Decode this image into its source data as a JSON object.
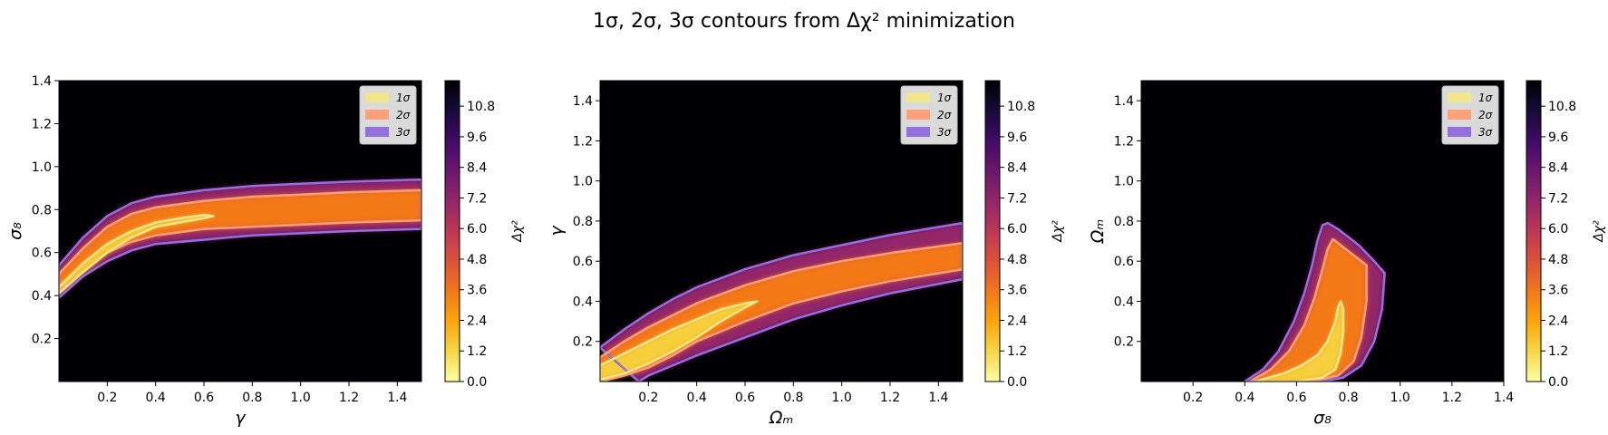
{
  "figure": {
    "title": "1σ, 2σ, 3σ contours from Δχ² minimization"
  },
  "colors": {
    "sigma1": "#f0e68c",
    "sigma2": "#ffa07a",
    "sigma3": "#9370db",
    "background": "#000004"
  },
  "chart_data": [
    {
      "type": "heatmap",
      "title": "",
      "xlabel": "γ",
      "ylabel": "σ₈",
      "xlim": [
        0.0,
        1.5
      ],
      "ylim": [
        0.0,
        1.4
      ],
      "xticks": [
        "0.2",
        "0.4",
        "0.6",
        "0.8",
        "1.0",
        "1.2",
        "1.4"
      ],
      "xtick_values": [
        0.2,
        0.4,
        0.6,
        0.8,
        1.0,
        1.2,
        1.4
      ],
      "yticks": [
        "0.2",
        "0.4",
        "0.6",
        "0.8",
        "1.0",
        "1.2",
        "1.4"
      ],
      "ytick_values": [
        0.2,
        0.4,
        0.6,
        0.8,
        1.0,
        1.2,
        1.4
      ],
      "grid": false,
      "legend": {
        "placement": "top-right",
        "entries": [
          "1σ",
          "2σ",
          "3σ"
        ]
      },
      "colorbar": {
        "label": "Δχ²",
        "colormap": "inferno_r",
        "range": [
          0.0,
          11.8
        ],
        "ticks": [
          "0.0",
          "1.2",
          "2.4",
          "3.6",
          "4.8",
          "6.0",
          "7.2",
          "8.4",
          "9.6",
          "10.8"
        ],
        "tick_values": [
          0.0,
          1.2,
          2.4,
          3.6,
          4.8,
          6.0,
          7.2,
          8.4,
          9.6,
          10.8
        ]
      },
      "contour_levels": [
        2.3,
        6.18,
        11.8
      ],
      "contours": [
        {
          "name": "1σ",
          "points": [
            [
              0.0,
              0.44
            ],
            [
              0.1,
              0.55
            ],
            [
              0.2,
              0.64
            ],
            [
              0.3,
              0.7
            ],
            [
              0.4,
              0.74
            ],
            [
              0.5,
              0.76
            ],
            [
              0.6,
              0.775
            ],
            [
              0.64,
              0.77
            ],
            [
              0.6,
              0.76
            ],
            [
              0.5,
              0.74
            ],
            [
              0.4,
              0.72
            ],
            [
              0.3,
              0.67
            ],
            [
              0.2,
              0.6
            ],
            [
              0.1,
              0.51
            ],
            [
              0.0,
              0.41
            ]
          ]
        },
        {
          "name": "2σ",
          "points": [
            [
              0.0,
              0.5
            ],
            [
              0.1,
              0.62
            ],
            [
              0.2,
              0.72
            ],
            [
              0.3,
              0.78
            ],
            [
              0.4,
              0.81
            ],
            [
              0.6,
              0.84
            ],
            [
              0.8,
              0.86
            ],
            [
              1.0,
              0.87
            ],
            [
              1.2,
              0.88
            ],
            [
              1.5,
              0.89
            ],
            [
              1.5,
              0.75
            ],
            [
              1.2,
              0.74
            ],
            [
              1.0,
              0.73
            ],
            [
              0.8,
              0.72
            ],
            [
              0.6,
              0.71
            ],
            [
              0.4,
              0.68
            ],
            [
              0.3,
              0.65
            ],
            [
              0.2,
              0.6
            ],
            [
              0.1,
              0.51
            ],
            [
              0.0,
              0.42
            ]
          ]
        },
        {
          "name": "3σ",
          "points": [
            [
              0.0,
              0.54
            ],
            [
              0.1,
              0.67
            ],
            [
              0.2,
              0.77
            ],
            [
              0.3,
              0.83
            ],
            [
              0.4,
              0.86
            ],
            [
              0.6,
              0.89
            ],
            [
              0.8,
              0.91
            ],
            [
              1.0,
              0.92
            ],
            [
              1.2,
              0.93
            ],
            [
              1.5,
              0.94
            ],
            [
              1.5,
              0.71
            ],
            [
              1.2,
              0.7
            ],
            [
              1.0,
              0.69
            ],
            [
              0.8,
              0.68
            ],
            [
              0.6,
              0.66
            ],
            [
              0.4,
              0.64
            ],
            [
              0.3,
              0.61
            ],
            [
              0.2,
              0.56
            ],
            [
              0.1,
              0.49
            ],
            [
              0.0,
              0.39
            ]
          ]
        }
      ]
    },
    {
      "type": "heatmap",
      "title": "",
      "xlabel": "Ωₘ",
      "ylabel": "γ",
      "xlim": [
        0.0,
        1.5
      ],
      "ylim": [
        0.0,
        1.5
      ],
      "xticks": [
        "0.2",
        "0.4",
        "0.6",
        "0.8",
        "1.0",
        "1.2",
        "1.4"
      ],
      "xtick_values": [
        0.2,
        0.4,
        0.6,
        0.8,
        1.0,
        1.2,
        1.4
      ],
      "yticks": [
        "0.2",
        "0.4",
        "0.6",
        "0.8",
        "1.0",
        "1.2",
        "1.4"
      ],
      "ytick_values": [
        0.2,
        0.4,
        0.6,
        0.8,
        1.0,
        1.2,
        1.4
      ],
      "grid": false,
      "legend": {
        "placement": "top-right",
        "entries": [
          "1σ",
          "2σ",
          "3σ"
        ]
      },
      "colorbar": {
        "label": "Δχ²",
        "colormap": "inferno_r",
        "range": [
          0.0,
          11.8
        ],
        "ticks": [
          "0.0",
          "1.2",
          "2.4",
          "3.6",
          "4.8",
          "6.0",
          "7.2",
          "8.4",
          "9.6",
          "10.8"
        ],
        "tick_values": [
          0.0,
          1.2,
          2.4,
          3.6,
          4.8,
          6.0,
          7.2,
          8.4,
          9.6,
          10.8
        ]
      },
      "contour_levels": [
        2.3,
        6.18,
        11.8
      ],
      "contours": [
        {
          "name": "1σ",
          "points": [
            [
              0.0,
              0.08
            ],
            [
              0.1,
              0.14
            ],
            [
              0.2,
              0.2
            ],
            [
              0.3,
              0.26
            ],
            [
              0.4,
              0.31
            ],
            [
              0.5,
              0.36
            ],
            [
              0.6,
              0.39
            ],
            [
              0.65,
              0.4
            ],
            [
              0.6,
              0.37
            ],
            [
              0.5,
              0.3
            ],
            [
              0.4,
              0.22
            ],
            [
              0.3,
              0.15
            ],
            [
              0.2,
              0.09
            ],
            [
              0.1,
              0.04
            ],
            [
              0.0,
              0.01
            ]
          ]
        },
        {
          "name": "2σ",
          "points": [
            [
              0.0,
              0.12
            ],
            [
              0.1,
              0.2
            ],
            [
              0.2,
              0.27
            ],
            [
              0.3,
              0.33
            ],
            [
              0.4,
              0.39
            ],
            [
              0.6,
              0.48
            ],
            [
              0.8,
              0.55
            ],
            [
              1.0,
              0.6
            ],
            [
              1.2,
              0.64
            ],
            [
              1.5,
              0.69
            ],
            [
              1.5,
              0.56
            ],
            [
              1.2,
              0.5
            ],
            [
              1.0,
              0.45
            ],
            [
              0.8,
              0.39
            ],
            [
              0.6,
              0.3
            ],
            [
              0.4,
              0.2
            ],
            [
              0.3,
              0.13
            ],
            [
              0.2,
              0.07
            ],
            [
              0.1,
              0.03
            ],
            [
              0.0,
              0.0
            ]
          ]
        },
        {
          "name": "3σ",
          "points": [
            [
              0.0,
              0.17
            ],
            [
              0.1,
              0.26
            ],
            [
              0.2,
              0.34
            ],
            [
              0.3,
              0.41
            ],
            [
              0.4,
              0.47
            ],
            [
              0.6,
              0.56
            ],
            [
              0.8,
              0.63
            ],
            [
              1.0,
              0.68
            ],
            [
              1.2,
              0.73
            ],
            [
              1.5,
              0.79
            ],
            [
              1.5,
              0.51
            ],
            [
              1.2,
              0.44
            ],
            [
              1.0,
              0.38
            ],
            [
              0.8,
              0.31
            ],
            [
              0.6,
              0.22
            ],
            [
              0.4,
              0.13
            ],
            [
              0.3,
              0.08
            ],
            [
              0.2,
              0.03
            ],
            [
              0.16,
              0.0
            ]
          ]
        }
      ]
    },
    {
      "type": "heatmap",
      "title": "",
      "xlabel": "σ₈",
      "ylabel": "Ωₘ",
      "xlim": [
        0.0,
        1.4
      ],
      "ylim": [
        0.0,
        1.5
      ],
      "xticks": [
        "0.2",
        "0.4",
        "0.6",
        "0.8",
        "1.0",
        "1.2",
        "1.4"
      ],
      "xtick_values": [
        0.2,
        0.4,
        0.6,
        0.8,
        1.0,
        1.2,
        1.4
      ],
      "yticks": [
        "0.2",
        "0.4",
        "0.6",
        "0.8",
        "1.0",
        "1.2",
        "1.4"
      ],
      "ytick_values": [
        0.2,
        0.4,
        0.6,
        0.8,
        1.0,
        1.2,
        1.4
      ],
      "grid": false,
      "legend": {
        "placement": "top-right",
        "entries": [
          "1σ",
          "2σ",
          "3σ"
        ]
      },
      "colorbar": {
        "label": "Δχ²",
        "colormap": "inferno_r",
        "range": [
          0.0,
          11.8
        ],
        "ticks": [
          "0.0",
          "1.2",
          "2.4",
          "3.6",
          "4.8",
          "6.0",
          "7.2",
          "8.4",
          "9.6",
          "10.8"
        ],
        "tick_values": [
          0.0,
          1.2,
          2.4,
          3.6,
          4.8,
          6.0,
          7.2,
          8.4,
          9.6,
          10.8
        ]
      },
      "contour_levels": [
        2.3,
        6.18,
        11.8
      ],
      "contours": [
        {
          "name": "1σ",
          "points": [
            [
              0.44,
              0.0
            ],
            [
              0.55,
              0.04
            ],
            [
              0.62,
              0.08
            ],
            [
              0.68,
              0.13
            ],
            [
              0.72,
              0.2
            ],
            [
              0.75,
              0.3
            ],
            [
              0.76,
              0.37
            ],
            [
              0.77,
              0.4
            ],
            [
              0.78,
              0.36
            ],
            [
              0.78,
              0.25
            ],
            [
              0.77,
              0.14
            ],
            [
              0.75,
              0.06
            ],
            [
              0.7,
              0.02
            ],
            [
              0.6,
              0.0
            ]
          ]
        },
        {
          "name": "2σ",
          "points": [
            [
              0.42,
              0.0
            ],
            [
              0.5,
              0.06
            ],
            [
              0.57,
              0.15
            ],
            [
              0.63,
              0.28
            ],
            [
              0.67,
              0.42
            ],
            [
              0.7,
              0.56
            ],
            [
              0.72,
              0.66
            ],
            [
              0.74,
              0.71
            ],
            [
              0.77,
              0.68
            ],
            [
              0.83,
              0.62
            ],
            [
              0.87,
              0.58
            ],
            [
              0.87,
              0.4
            ],
            [
              0.85,
              0.22
            ],
            [
              0.82,
              0.1
            ],
            [
              0.76,
              0.03
            ],
            [
              0.66,
              0.0
            ]
          ]
        },
        {
          "name": "3σ",
          "points": [
            [
              0.4,
              0.0
            ],
            [
              0.47,
              0.06
            ],
            [
              0.53,
              0.15
            ],
            [
              0.59,
              0.3
            ],
            [
              0.63,
              0.44
            ],
            [
              0.66,
              0.58
            ],
            [
              0.68,
              0.7
            ],
            [
              0.7,
              0.78
            ],
            [
              0.72,
              0.79
            ],
            [
              0.76,
              0.76
            ],
            [
              0.84,
              0.68
            ],
            [
              0.9,
              0.6
            ],
            [
              0.94,
              0.54
            ],
            [
              0.93,
              0.36
            ],
            [
              0.9,
              0.2
            ],
            [
              0.85,
              0.08
            ],
            [
              0.78,
              0.02
            ],
            [
              0.7,
              0.0
            ]
          ]
        }
      ]
    }
  ]
}
